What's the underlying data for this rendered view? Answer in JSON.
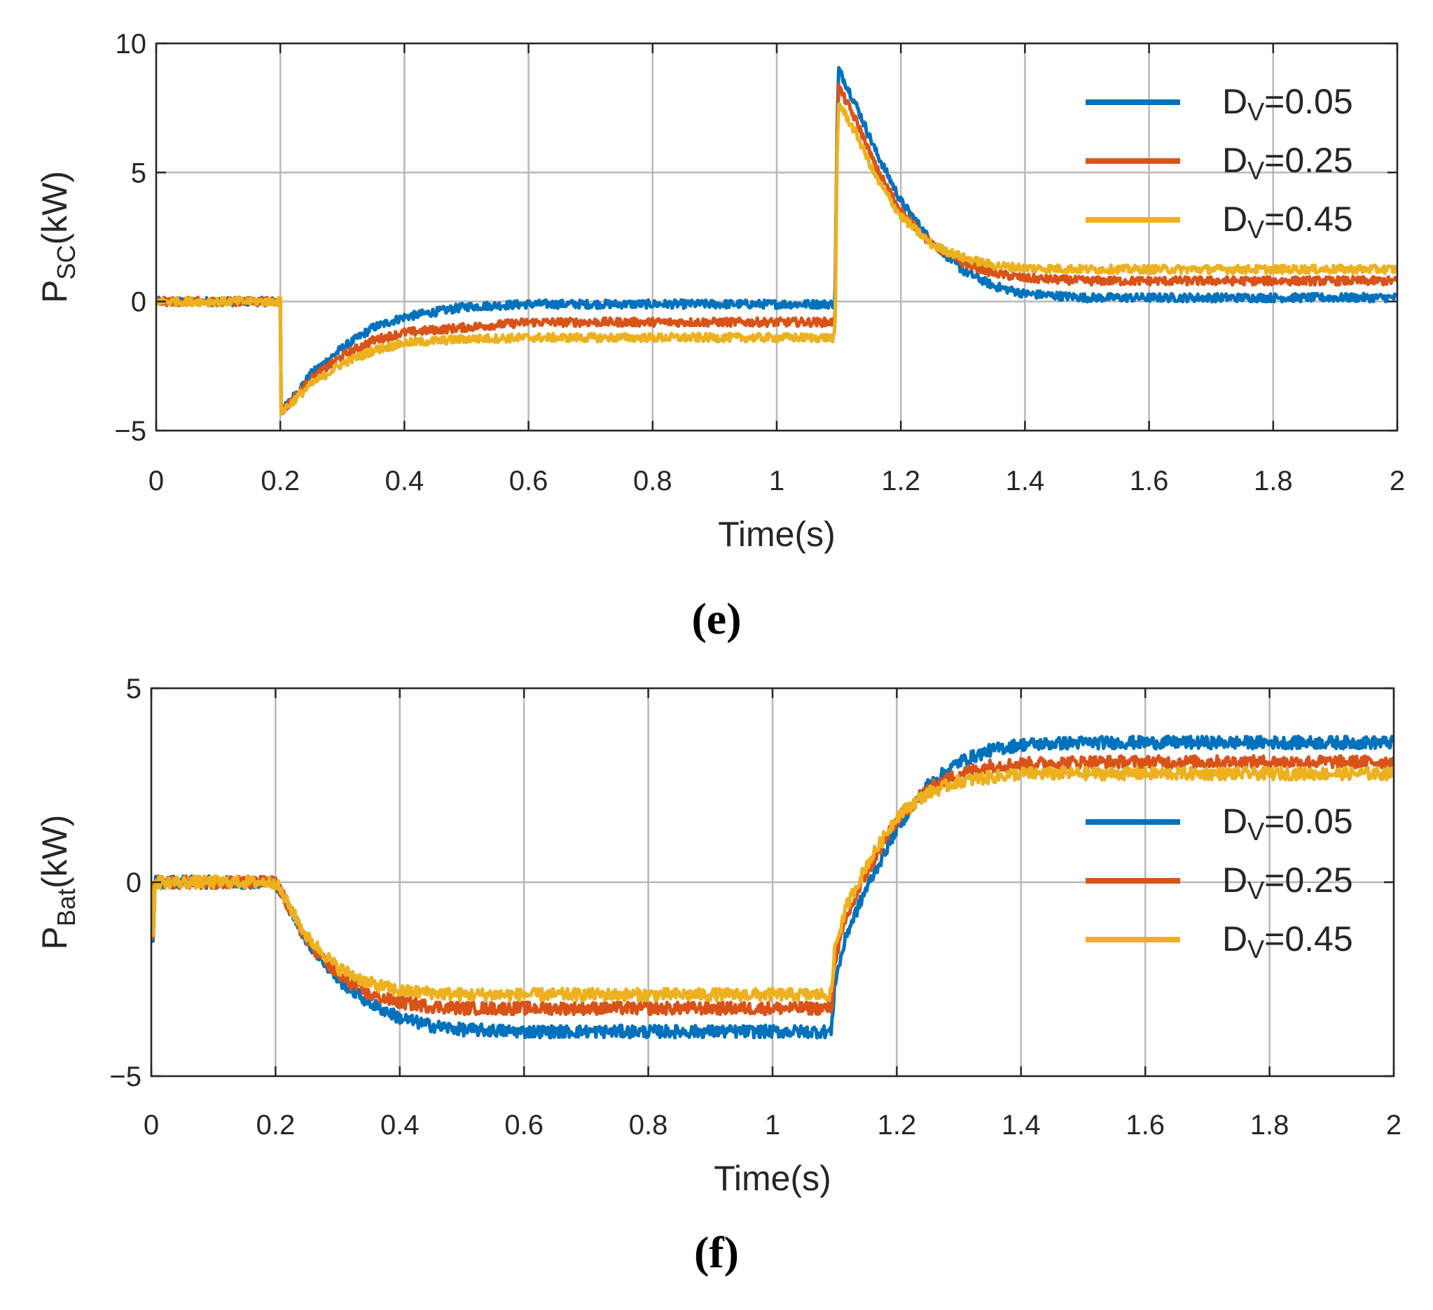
{
  "chart_data": [
    {
      "type": "line",
      "panel_label": "(e)",
      "ylabel_main": "P",
      "ylabel_sub": "SC",
      "ylabel_unit": "(kW)",
      "xlabel": "Time(s)",
      "xlim": [
        0,
        2
      ],
      "ylim": [
        -5,
        10
      ],
      "xticks": [
        0,
        0.2,
        0.4,
        0.6,
        0.8,
        1,
        1.2,
        1.4,
        1.6,
        1.8,
        2
      ],
      "xtick_labels": [
        "0",
        "0.2",
        "0.4",
        "0.6",
        "0.8",
        "1",
        "1.2",
        "1.4",
        "1.6",
        "1.8",
        "2"
      ],
      "yticks": [
        -5,
        0,
        5,
        10
      ],
      "ytick_labels": [
        "−5",
        "0",
        "5",
        "10"
      ],
      "grid": true,
      "legend_position": "top-right",
      "series": [
        {
          "name_main": "D",
          "name_sub": "V",
          "name_rest": "=0.05",
          "color": "#0072BD",
          "x": [
            0,
            0.2,
            0.201,
            0.25,
            0.3,
            0.35,
            0.4,
            0.5,
            0.6,
            0.8,
            1.0,
            1.094,
            1.097,
            1.1,
            1.13,
            1.16,
            1.2,
            1.25,
            1.3,
            1.35,
            1.4,
            1.5,
            1.6,
            2.0
          ],
          "y": [
            0,
            0,
            -4.3,
            -2.8,
            -1.8,
            -1.0,
            -0.6,
            -0.2,
            -0.1,
            -0.1,
            -0.1,
            -0.1,
            6.5,
            9.0,
            7.5,
            5.8,
            3.9,
            2.3,
            1.2,
            0.6,
            0.3,
            0.15,
            0.15,
            0.15
          ]
        },
        {
          "name_main": "D",
          "name_sub": "V",
          "name_rest": "=0.25",
          "color": "#D95319",
          "x": [
            0,
            0.2,
            0.201,
            0.25,
            0.3,
            0.35,
            0.4,
            0.5,
            0.6,
            0.8,
            1.0,
            1.094,
            1.097,
            1.1,
            1.13,
            1.16,
            1.2,
            1.25,
            1.3,
            1.35,
            1.4,
            1.5,
            1.6,
            2.0
          ],
          "y": [
            0,
            0,
            -4.3,
            -3.0,
            -2.1,
            -1.5,
            -1.2,
            -1.0,
            -0.8,
            -0.8,
            -0.8,
            -0.8,
            6.0,
            8.3,
            6.9,
            5.2,
            3.5,
            2.2,
            1.5,
            1.1,
            0.9,
            0.8,
            0.8,
            0.8
          ]
        },
        {
          "name_main": "D",
          "name_sub": "V",
          "name_rest": "=0.45",
          "color": "#EDB120",
          "x": [
            0,
            0.2,
            0.201,
            0.25,
            0.3,
            0.35,
            0.4,
            0.5,
            0.6,
            0.8,
            1.0,
            1.094,
            1.097,
            1.1,
            1.13,
            1.16,
            1.2,
            1.25,
            1.3,
            1.35,
            1.4,
            1.5,
            1.6,
            2.0
          ],
          "y": [
            0,
            0,
            -4.3,
            -3.2,
            -2.4,
            -1.9,
            -1.6,
            -1.45,
            -1.4,
            -1.4,
            -1.4,
            -1.4,
            5.6,
            7.7,
            6.4,
            4.8,
            3.3,
            2.2,
            1.7,
            1.4,
            1.3,
            1.25,
            1.25,
            1.25
          ]
        }
      ]
    },
    {
      "type": "line",
      "panel_label": "(f)",
      "ylabel_main": "P",
      "ylabel_sub": "Bat",
      "ylabel_unit": "(kW)",
      "xlabel": "Time(s)",
      "xlim": [
        0,
        2
      ],
      "ylim": [
        -5,
        5
      ],
      "xticks": [
        0,
        0.2,
        0.4,
        0.6,
        0.8,
        1,
        1.2,
        1.4,
        1.6,
        1.8,
        2
      ],
      "xtick_labels": [
        "0",
        "0.2",
        "0.4",
        "0.6",
        "0.8",
        "1",
        "1.2",
        "1.4",
        "1.6",
        "1.8",
        "2"
      ],
      "yticks": [
        -5,
        0,
        5
      ],
      "ytick_labels": [
        "−5",
        "0",
        "5"
      ],
      "grid": true,
      "legend_position": "right",
      "series": [
        {
          "name_main": "D",
          "name_sub": "V",
          "name_rest": "=0.05",
          "color": "#0072BD",
          "x": [
            0,
            0.003,
            0.006,
            0.2,
            0.25,
            0.3,
            0.35,
            0.4,
            0.45,
            0.5,
            0.6,
            0.8,
            1.0,
            1.095,
            1.1,
            1.12,
            1.15,
            1.2,
            1.25,
            1.3,
            1.35,
            1.4,
            1.5,
            1.6,
            2.0
          ],
          "y": [
            0,
            -1.6,
            0,
            0,
            -1.5,
            -2.5,
            -3.1,
            -3.5,
            -3.7,
            -3.8,
            -3.85,
            -3.85,
            -3.85,
            -3.85,
            -2.6,
            -1.3,
            -0.2,
            1.4,
            2.5,
            3.1,
            3.4,
            3.55,
            3.6,
            3.6,
            3.6
          ]
        },
        {
          "name_main": "D",
          "name_sub": "V",
          "name_rest": "=0.25",
          "color": "#D95319",
          "x": [
            0,
            0.003,
            0.006,
            0.2,
            0.25,
            0.3,
            0.35,
            0.4,
            0.45,
            0.5,
            0.6,
            0.8,
            1.0,
            1.095,
            1.1,
            1.12,
            1.15,
            1.2,
            1.25,
            1.3,
            1.35,
            1.4,
            1.5,
            1.6,
            2.0
          ],
          "y": [
            0,
            -1.6,
            0,
            0,
            -1.5,
            -2.4,
            -2.9,
            -3.1,
            -3.2,
            -3.25,
            -3.25,
            -3.25,
            -3.25,
            -3.25,
            -2.0,
            -0.9,
            0.2,
            1.6,
            2.4,
            2.8,
            3.0,
            3.05,
            3.1,
            3.1,
            3.1
          ]
        },
        {
          "name_main": "D",
          "name_sub": "V",
          "name_rest": "=0.45",
          "color": "#EDB120",
          "x": [
            0,
            0.003,
            0.006,
            0.2,
            0.25,
            0.3,
            0.35,
            0.4,
            0.45,
            0.5,
            0.6,
            0.8,
            1.0,
            1.095,
            1.1,
            1.12,
            1.15,
            1.2,
            1.25,
            1.3,
            1.35,
            1.4,
            1.5,
            1.6,
            2.0
          ],
          "y": [
            0,
            -1.6,
            0,
            0,
            -1.4,
            -2.2,
            -2.6,
            -2.8,
            -2.85,
            -2.9,
            -2.9,
            -2.9,
            -2.9,
            -2.9,
            -1.7,
            -0.6,
            0.4,
            1.7,
            2.3,
            2.6,
            2.7,
            2.8,
            2.8,
            2.8,
            2.8
          ]
        }
      ]
    }
  ]
}
